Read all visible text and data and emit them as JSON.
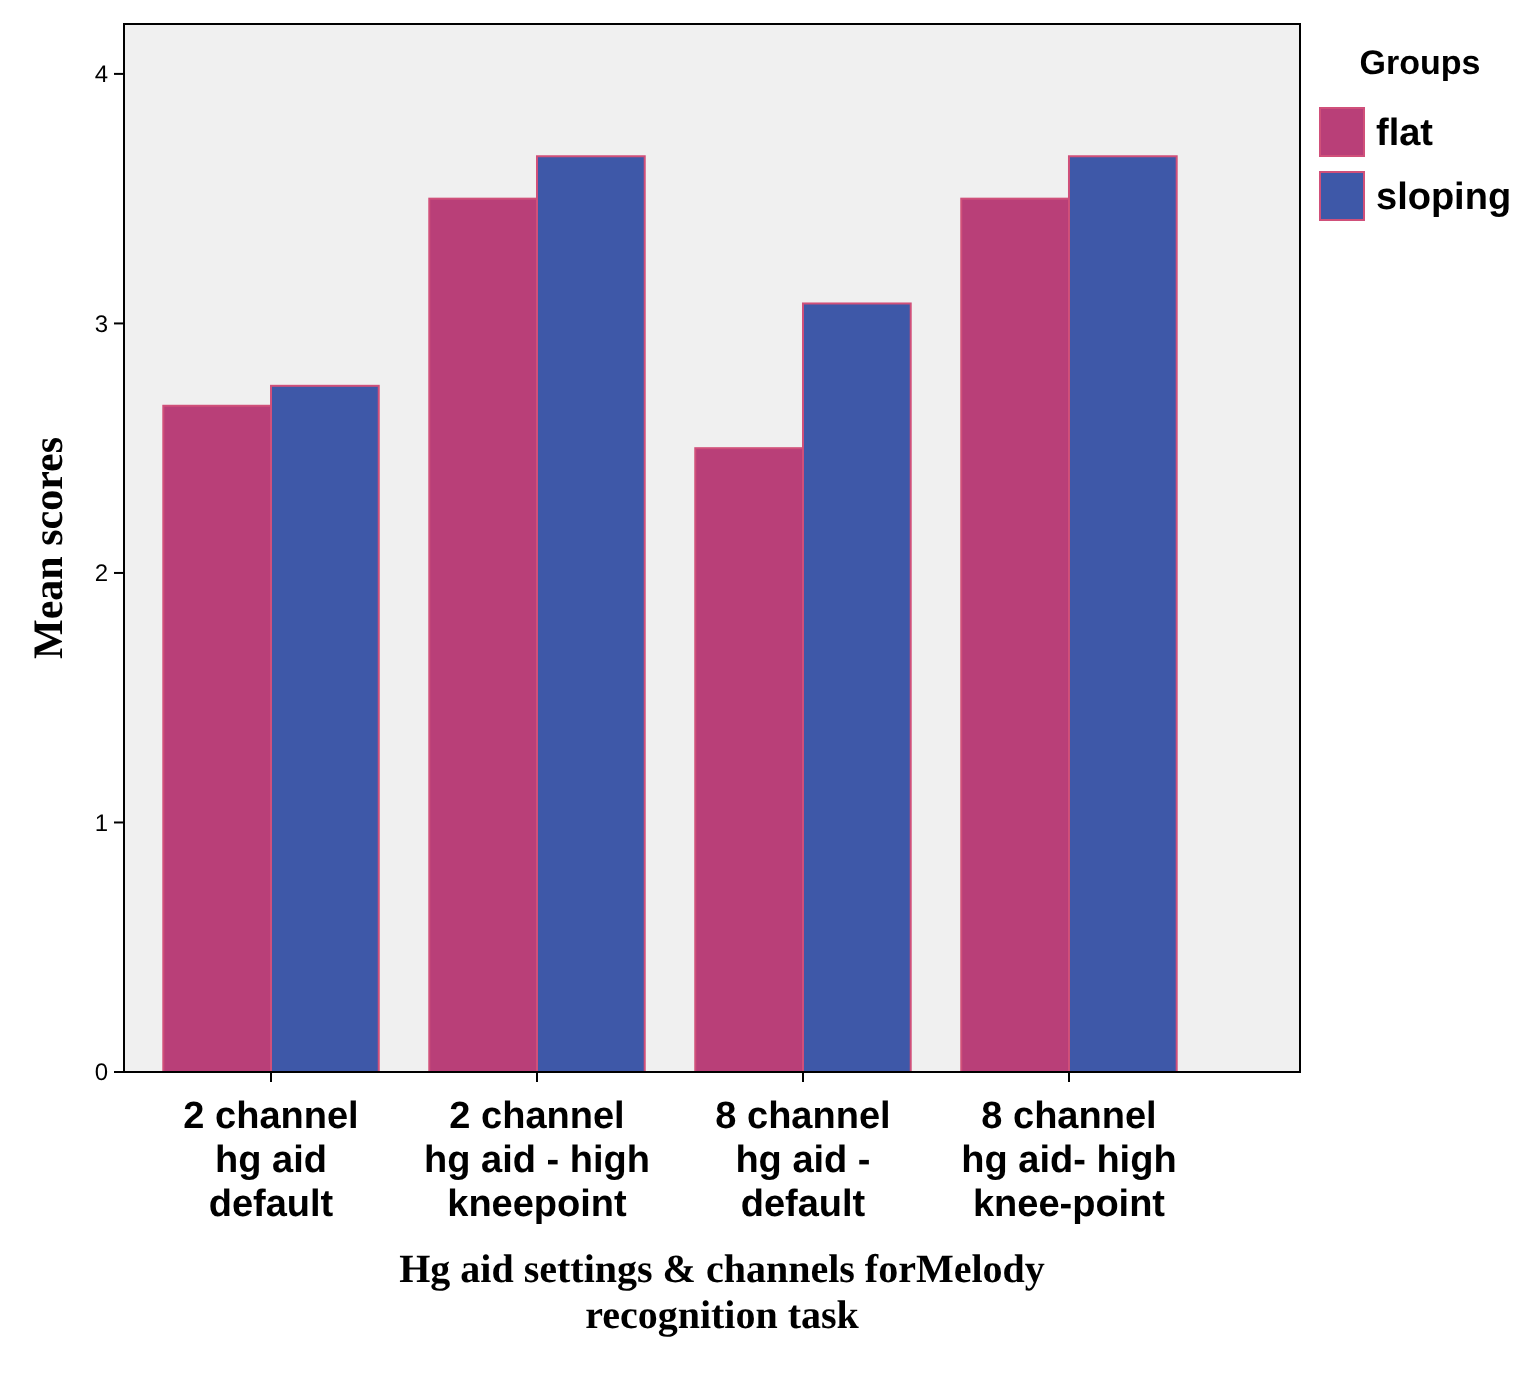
{
  "chart_data": {
    "type": "bar",
    "xlabel": "Hg aid settings & channels forMelody\nrecognition task",
    "ylabel": "Mean scores",
    "legend_title": "Groups",
    "legend": "right",
    "categories": [
      "2 channel\nhg aid\ndefault",
      "2 channel\nhg aid - high\nkneepoint",
      "8 channel\nhg aid -\ndefault",
      "8 channel\nhg aid- high\nknee-point"
    ],
    "series": [
      {
        "name": "flat",
        "color": "#b93f78",
        "values": [
          2.67,
          3.5,
          2.5,
          3.5
        ]
      },
      {
        "name": "sloping",
        "color": "#3e58a8",
        "values": [
          2.75,
          3.67,
          3.08,
          3.67
        ]
      }
    ],
    "ylim": [
      0,
      4.2
    ],
    "yticks": [
      0,
      1,
      2,
      3,
      4
    ],
    "grid": false
  }
}
